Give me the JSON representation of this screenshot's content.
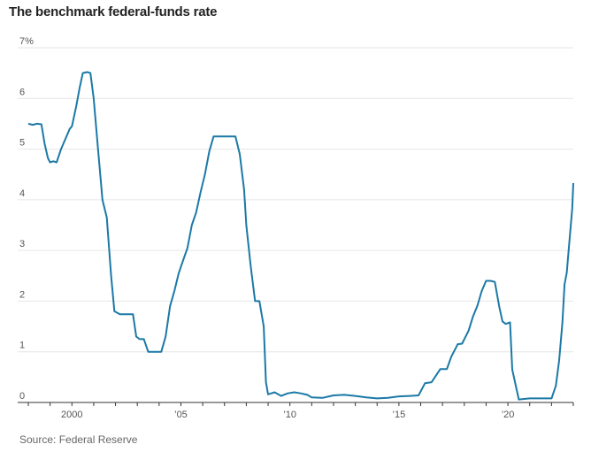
{
  "header": {
    "title": "The benchmark federal-funds rate"
  },
  "footer": {
    "source": "Source: Federal Reserve"
  },
  "chart_data": {
    "type": "line",
    "title": "The benchmark federal-funds rate",
    "xlabel": "",
    "ylabel": "",
    "xlim": [
      1998.0,
      2023.0
    ],
    "ylim": [
      0,
      7
    ],
    "y_ticks": [
      "0",
      "1",
      "2",
      "3",
      "4",
      "5",
      "6",
      "7%"
    ],
    "x_ticks": [
      {
        "value": 2000,
        "label": "2000"
      },
      {
        "value": 2005,
        "label": "’05"
      },
      {
        "value": 2010,
        "label": "’10"
      },
      {
        "value": 2015,
        "label": "’15"
      },
      {
        "value": 2020,
        "label": "’20"
      }
    ],
    "grid": true,
    "series": [
      {
        "color": "#1b79a6",
        "x": [
          1998.0,
          1998.2,
          1998.4,
          1998.6,
          1998.75,
          1998.9,
          1999.0,
          1999.15,
          1999.3,
          1999.5,
          1999.7,
          1999.9,
          2000.0,
          2000.2,
          2000.35,
          2000.5,
          2000.7,
          2000.85,
          2001.0,
          2001.2,
          2001.4,
          2001.6,
          2001.8,
          2001.95,
          2002.2,
          2002.5,
          2002.8,
          2002.95,
          2003.1,
          2003.3,
          2003.5,
          2003.65,
          2003.9,
          2004.1,
          2004.3,
          2004.5,
          2004.7,
          2004.9,
          2005.1,
          2005.3,
          2005.5,
          2005.7,
          2005.9,
          2006.1,
          2006.3,
          2006.5,
          2006.7,
          2006.9,
          2007.1,
          2007.3,
          2007.5,
          2007.7,
          2007.9,
          2008.0,
          2008.2,
          2008.4,
          2008.6,
          2008.8,
          2008.9,
          2009.0,
          2009.3,
          2009.6,
          2009.9,
          2010.2,
          2010.5,
          2010.8,
          2011.0,
          2011.5,
          2012.0,
          2012.5,
          2013.0,
          2013.5,
          2014.0,
          2014.5,
          2015.0,
          2015.5,
          2015.9,
          2016.2,
          2016.5,
          2016.9,
          2017.2,
          2017.4,
          2017.7,
          2017.9,
          2018.2,
          2018.4,
          2018.6,
          2018.8,
          2019.0,
          2019.2,
          2019.4,
          2019.6,
          2019.75,
          2019.9,
          2020.1,
          2020.2,
          2020.5,
          2021.0,
          2021.5,
          2022.0,
          2022.2,
          2022.35,
          2022.5,
          2022.6,
          2022.7,
          2022.8,
          2022.95,
          2023.0
        ],
        "y": [
          5.5,
          5.48,
          5.5,
          5.49,
          5.1,
          4.82,
          4.74,
          4.76,
          4.74,
          5.0,
          5.2,
          5.4,
          5.45,
          5.85,
          6.2,
          6.5,
          6.52,
          6.5,
          6.0,
          5.0,
          4.0,
          3.65,
          2.5,
          1.8,
          1.74,
          1.74,
          1.74,
          1.3,
          1.25,
          1.25,
          1.0,
          1.0,
          1.0,
          1.0,
          1.3,
          1.9,
          2.2,
          2.55,
          2.8,
          3.05,
          3.5,
          3.75,
          4.15,
          4.5,
          4.95,
          5.25,
          5.25,
          5.25,
          5.25,
          5.25,
          5.25,
          4.9,
          4.2,
          3.5,
          2.7,
          2.0,
          2.0,
          1.5,
          0.4,
          0.16,
          0.2,
          0.13,
          0.18,
          0.2,
          0.18,
          0.15,
          0.1,
          0.09,
          0.14,
          0.15,
          0.13,
          0.1,
          0.08,
          0.09,
          0.12,
          0.13,
          0.14,
          0.38,
          0.4,
          0.66,
          0.66,
          0.9,
          1.15,
          1.16,
          1.42,
          1.7,
          1.91,
          2.2,
          2.4,
          2.4,
          2.38,
          1.9,
          1.6,
          1.55,
          1.58,
          0.65,
          0.06,
          0.08,
          0.08,
          0.08,
          0.33,
          0.83,
          1.58,
          2.33,
          2.56,
          3.08,
          3.83,
          4.33
        ]
      }
    ]
  }
}
